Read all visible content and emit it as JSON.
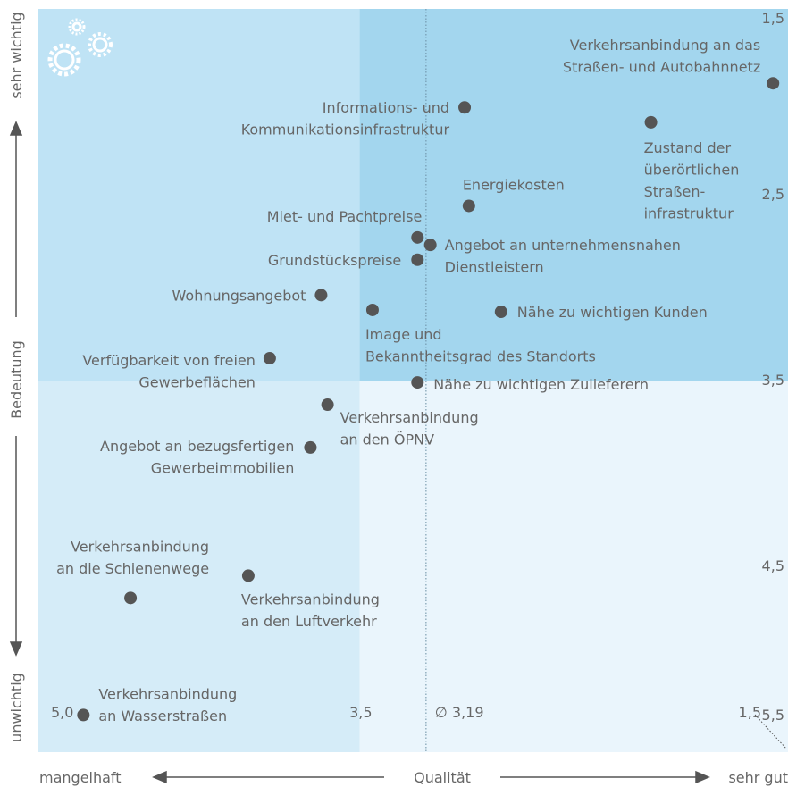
{
  "chart_data": {
    "type": "scatter",
    "x_label": "Qualität",
    "x_low_label": "mangelhaft",
    "x_high_label": "sehr gut",
    "y_label": "Bedeutung",
    "y_high_label": "sehr wichtig",
    "y_low_label": "unwichtig",
    "xlim": [
      5.0,
      1.5
    ],
    "ylim": [
      5.5,
      1.5
    ],
    "xticks": [
      {
        "value": 5.0,
        "label": "5,0"
      },
      {
        "value": 3.5,
        "label": "3,5"
      },
      {
        "value": 1.5,
        "label": "1,5"
      }
    ],
    "yticks": [
      {
        "value": 1.5,
        "label": "1,5"
      },
      {
        "value": 2.5,
        "label": "2,5"
      },
      {
        "value": 3.5,
        "label": "3,5"
      },
      {
        "value": 4.5,
        "label": "4,5"
      },
      {
        "value": 5.5,
        "label": "5,5"
      }
    ],
    "x_split": 3.5,
    "y_split": 3.5,
    "mean": {
      "value": 3.19,
      "label": "∅ 3,19"
    },
    "color": "#555555",
    "quadrant_colors": [
      "#bfe3f5",
      "#a3d6ee",
      "#d5ecf8",
      "#eaf5fc"
    ],
    "points": [
      {
        "label": [
          "Verkehrsanbindung an das",
          "Straßen- und Autobahnnetz"
        ],
        "x": 1.57,
        "y": 1.9
      },
      {
        "label": [
          "Zustand der",
          "überörtlichen",
          "Straßen-",
          "infrastruktur"
        ],
        "x": 2.14,
        "y": 2.11
      },
      {
        "label": [
          "Informations- und",
          "Kommunikationsinfrastruktur"
        ],
        "x": 3.01,
        "y": 2.03
      },
      {
        "label": [
          "Energiekosten"
        ],
        "x": 2.99,
        "y": 2.56
      },
      {
        "label": [
          "Miet- und Pachtpreise"
        ],
        "x": 3.23,
        "y": 2.73
      },
      {
        "label": [
          "Angebot an unternehmensnahen",
          "Dienstleistern"
        ],
        "x": 3.17,
        "y": 2.77
      },
      {
        "label": [
          "Grundstückspreise"
        ],
        "x": 3.23,
        "y": 2.85
      },
      {
        "label": [
          "Wohnungsangebot"
        ],
        "x": 3.68,
        "y": 3.04
      },
      {
        "label": [
          "Image und",
          "Bekanntheitsgrad des Standorts"
        ],
        "x": 3.44,
        "y": 3.12
      },
      {
        "label": [
          "Nähe zu wichtigen Kunden"
        ],
        "x": 2.84,
        "y": 3.13
      },
      {
        "label": [
          "Verfügbarkeit von freien",
          "Gewerbeflächen"
        ],
        "x": 3.92,
        "y": 3.38
      },
      {
        "label": [
          "Nähe zu wichtigen Zulieferern"
        ],
        "x": 3.23,
        "y": 3.51
      },
      {
        "label": [
          "Verkehrsanbindung",
          "an den ÖPNV"
        ],
        "x": 3.65,
        "y": 3.63
      },
      {
        "label": [
          "Angebot an bezugsfertigen",
          "Gewerbeimmobilien"
        ],
        "x": 3.73,
        "y": 3.86
      },
      {
        "label": [
          "Verkehrsanbindung",
          "an den Luftverkehr"
        ],
        "x": 4.02,
        "y": 4.55
      },
      {
        "label": [
          "Verkehrsanbindung",
          "an die Schienenwege"
        ],
        "x": 4.57,
        "y": 4.67
      },
      {
        "label": [
          "Verkehrsanbindung",
          "an Wasserstraßen"
        ],
        "x": 4.79,
        "y": 5.3
      }
    ]
  }
}
